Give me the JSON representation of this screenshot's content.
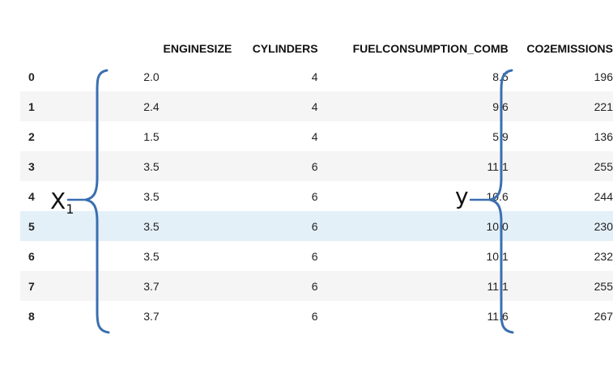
{
  "table": {
    "columns": [
      "",
      "ENGINESIZE",
      "CYLINDERS",
      "FUELCONSUMPTION_COMB",
      "CO2EMISSIONS"
    ],
    "rows": [
      {
        "index": "0",
        "enginesize": "2.0",
        "cylinders": "4",
        "fuel": "8.5",
        "co2": "196"
      },
      {
        "index": "1",
        "enginesize": "2.4",
        "cylinders": "4",
        "fuel": "9.6",
        "co2": "221"
      },
      {
        "index": "2",
        "enginesize": "1.5",
        "cylinders": "4",
        "fuel": "5.9",
        "co2": "136"
      },
      {
        "index": "3",
        "enginesize": "3.5",
        "cylinders": "6",
        "fuel": "11.1",
        "co2": "255"
      },
      {
        "index": "4",
        "enginesize": "3.5",
        "cylinders": "6",
        "fuel": "10.6",
        "co2": "244"
      },
      {
        "index": "5",
        "enginesize": "3.5",
        "cylinders": "6",
        "fuel": "10.0",
        "co2": "230"
      },
      {
        "index": "6",
        "enginesize": "3.5",
        "cylinders": "6",
        "fuel": "10.1",
        "co2": "232"
      },
      {
        "index": "7",
        "enginesize": "3.7",
        "cylinders": "6",
        "fuel": "11.1",
        "co2": "255"
      },
      {
        "index": "8",
        "enginesize": "3.7",
        "cylinders": "6",
        "fuel": "11.6",
        "co2": "267"
      }
    ],
    "highlighted_row": "5"
  },
  "annotations": {
    "x_label": "X",
    "x_subscript": "1",
    "y_label": "y",
    "bracket_color": "#3a6fb0"
  },
  "colors": {
    "stripe": "#f5f5f5",
    "highlight": "#e3f0f8",
    "text": "#222222"
  }
}
